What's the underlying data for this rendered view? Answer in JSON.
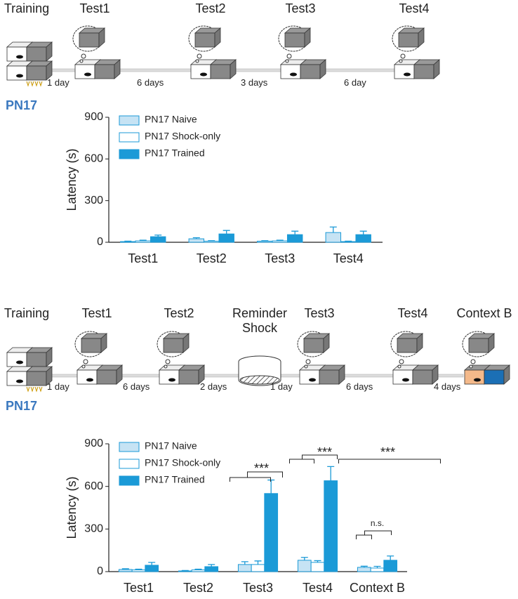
{
  "timelines": [
    {
      "label": "PN17",
      "stages": [
        "Training",
        "Test1",
        "Test2",
        "Test3",
        "Test4"
      ],
      "intervals": [
        "1 day",
        "6 days",
        "3 days",
        "6 day"
      ]
    },
    {
      "label": "PN17",
      "stages": [
        "Training",
        "Test1",
        "Test2",
        "Reminder Shock",
        "Test3",
        "Test4",
        "Context B"
      ],
      "intervals": [
        "1 day",
        "6 days",
        "2 days",
        "1 day",
        "6 days",
        "4 days"
      ]
    }
  ],
  "chart_data": [
    {
      "type": "bar",
      "y_label": "Latency (s)",
      "categories": [
        "Test1",
        "Test2",
        "Test3",
        "Test4"
      ],
      "series": [
        {
          "name": "PN17 Naive",
          "color": "#c6e3f4",
          "values": [
            5,
            25,
            8,
            70
          ],
          "errors": [
            3,
            8,
            3,
            40
          ]
        },
        {
          "name": "PN17 Shock-only",
          "color": "#ffffff",
          "values": [
            10,
            8,
            10,
            5
          ],
          "errors": [
            5,
            3,
            5,
            3
          ]
        },
        {
          "name": "PN17 Trained",
          "color": "#1b9ad7",
          "values": [
            40,
            60,
            55,
            55
          ],
          "errors": [
            12,
            25,
            25,
            25
          ]
        }
      ],
      "ylim": [
        0,
        900
      ],
      "yticks": [
        0,
        300,
        600,
        900
      ],
      "legend": "upper left"
    },
    {
      "type": "bar",
      "y_label": "Latency (s)",
      "categories": [
        "Test1",
        "Test2",
        "Test3",
        "Test4",
        "Context B"
      ],
      "series": [
        {
          "name": "PN17 Naive",
          "color": "#c6e3f4",
          "values": [
            15,
            5,
            50,
            80,
            30
          ],
          "errors": [
            5,
            3,
            20,
            20,
            8
          ]
        },
        {
          "name": "PN17 Shock-only",
          "color": "#ffffff",
          "values": [
            12,
            12,
            50,
            65,
            25
          ],
          "errors": [
            5,
            5,
            25,
            12,
            12
          ]
        },
        {
          "name": "PN17 Trained",
          "color": "#1b9ad7",
          "values": [
            45,
            35,
            550,
            640,
            80
          ],
          "errors": [
            20,
            15,
            95,
            100,
            30
          ]
        }
      ],
      "ylim": [
        0,
        900
      ],
      "yticks": [
        0,
        300,
        600,
        900
      ],
      "legend": "upper left",
      "annotations": [
        "***",
        "***",
        "***",
        "n.s."
      ]
    }
  ]
}
